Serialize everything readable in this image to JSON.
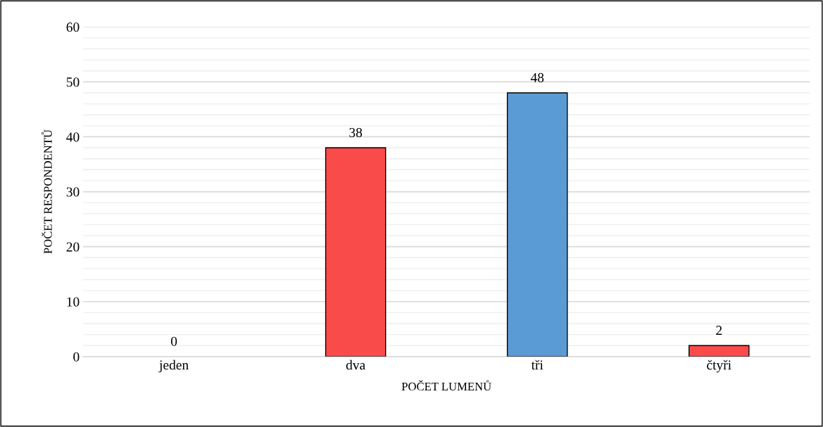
{
  "chart_data": {
    "type": "bar",
    "xlabel": "POČET LUMENŮ",
    "ylabel": "POČET RESPONDENTŮ",
    "categories": [
      "jeden",
      "dva",
      "tři",
      "čtyři"
    ],
    "values": [
      0,
      38,
      48,
      2
    ],
    "colors": [
      "#fa4b4b",
      "#fa4b4b",
      "#5b9bd5",
      "#fa4b4b"
    ],
    "ylim": [
      0,
      60
    ],
    "yticks": [
      0,
      10,
      20,
      30,
      40,
      50,
      60
    ],
    "grid": "y",
    "data_labels": true
  }
}
